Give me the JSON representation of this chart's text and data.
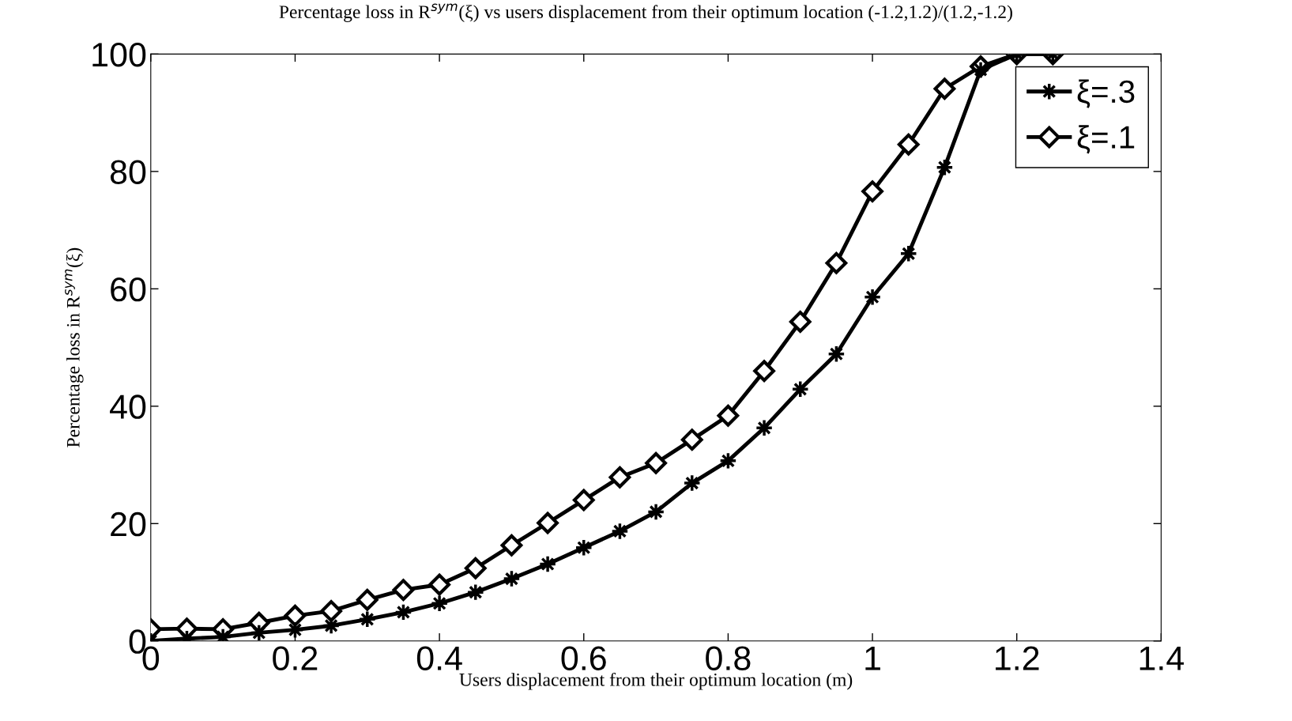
{
  "chart_data": {
    "type": "line",
    "title": "Percentage loss in R$^{sym}$(ξ) vs users displacement from their optimum location (-1.2,1.2)/(1.2,-1.2)",
    "xlabel": "Users displacement from their optimum location (m)",
    "ylabel": "Percentage loss in R$^{sym}$(ξ)",
    "x": [
      0,
      0.05,
      0.1,
      0.15,
      0.2,
      0.25,
      0.3,
      0.35,
      0.4,
      0.45,
      0.5,
      0.55,
      0.6,
      0.65,
      0.7,
      0.75,
      0.8,
      0.85,
      0.9,
      0.95,
      1.0,
      1.05,
      1.1,
      1.15,
      1.2,
      1.25
    ],
    "series": [
      {
        "name": "ξ=.3",
        "color": "#000000",
        "marker": "star",
        "values": [
          0,
          0.4,
          0.7,
          1.4,
          1.9,
          2.6,
          3.7,
          4.9,
          6.4,
          8.3,
          10.6,
          13.1,
          15.9,
          18.7,
          22,
          26.9,
          30.7,
          36.3,
          42.9,
          48.9,
          58.6,
          66,
          80.7,
          97.3,
          100,
          100
        ]
      },
      {
        "name": "ξ=.1",
        "color": "#000000",
        "marker": "diamond",
        "values": [
          2,
          2.1,
          2,
          3.1,
          4.3,
          5.1,
          7,
          8.7,
          9.6,
          12.4,
          16.3,
          20.1,
          24,
          27.9,
          30.3,
          34.3,
          38.4,
          46,
          54.4,
          64.4,
          76.6,
          84.6,
          94.1,
          97.9,
          100,
          100
        ]
      }
    ],
    "xlim": [
      0,
      1.4
    ],
    "xticks": [
      0,
      0.2,
      0.4,
      0.6,
      0.8,
      1,
      1.2,
      1.4
    ],
    "ylim": [
      0,
      100
    ],
    "yticks": [
      0,
      20,
      40,
      60,
      80,
      100
    ],
    "grid": false,
    "legend": "top right",
    "line_style": "solid"
  }
}
